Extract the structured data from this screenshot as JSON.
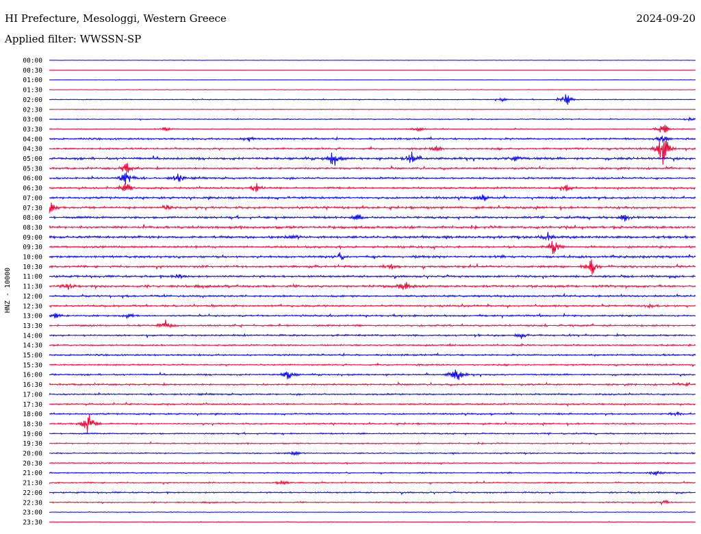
{
  "header": {
    "station": "HI Prefecture, Mesologgi, Western Greece",
    "date": "2024-09-20",
    "filter": "Applied filter: WWSSN-SP"
  },
  "chart_data": {
    "type": "line",
    "title": "HI Prefecture, Mesologgi, Western Greece",
    "date": "2024-09-20",
    "filter": "WWSSN-SP",
    "ylabel": "HNZ - 10000",
    "xlabel": "",
    "row_colors": [
      "#0000ee",
      "#ee0033"
    ],
    "grid": false,
    "legend": "none",
    "trace_minutes_per_row": 30,
    "rows": [
      {
        "label": "00:00",
        "bursts": [],
        "noise": 0.2
      },
      {
        "label": "00:30",
        "bursts": [],
        "noise": 0.2
      },
      {
        "label": "01:00",
        "bursts": [],
        "noise": 0.25
      },
      {
        "label": "01:30",
        "bursts": [],
        "noise": 0.3
      },
      {
        "label": "02:00",
        "bursts": [
          [
            0.7,
            3
          ],
          [
            0.8,
            11
          ]
        ],
        "noise": 0.5
      },
      {
        "label": "02:30",
        "bursts": [],
        "noise": 0.4
      },
      {
        "label": "03:00",
        "bursts": [
          [
            0.99,
            3
          ]
        ],
        "noise": 0.6
      },
      {
        "label": "03:30",
        "bursts": [
          [
            0.18,
            4
          ],
          [
            0.57,
            4
          ],
          [
            0.95,
            10
          ]
        ],
        "noise": 0.6
      },
      {
        "label": "04:00",
        "bursts": [
          [
            0.31,
            4
          ],
          [
            0.95,
            5
          ]
        ],
        "noise": 1.2
      },
      {
        "label": "04:30",
        "bursts": [
          [
            0.6,
            4
          ],
          [
            0.95,
            30
          ]
        ],
        "noise": 1.2
      },
      {
        "label": "05:00",
        "bursts": [
          [
            0.44,
            14
          ],
          [
            0.56,
            12
          ],
          [
            0.72,
            5
          ]
        ],
        "noise": 1.5
      },
      {
        "label": "05:30",
        "bursts": [
          [
            0.12,
            10
          ]
        ],
        "noise": 1.2
      },
      {
        "label": "06:00",
        "bursts": [
          [
            0.12,
            16
          ],
          [
            0.2,
            8
          ]
        ],
        "noise": 1.2
      },
      {
        "label": "06:30",
        "bursts": [
          [
            0.12,
            9
          ],
          [
            0.32,
            8
          ],
          [
            0.8,
            5
          ]
        ],
        "noise": 1.2
      },
      {
        "label": "07:00",
        "bursts": [
          [
            0.67,
            5
          ]
        ],
        "noise": 1.4
      },
      {
        "label": "07:30",
        "bursts": [
          [
            0.0,
            12
          ],
          [
            0.18,
            6
          ]
        ],
        "noise": 1.4
      },
      {
        "label": "08:00",
        "bursts": [
          [
            0.48,
            5
          ],
          [
            0.89,
            6
          ]
        ],
        "noise": 1.4
      },
      {
        "label": "08:30",
        "bursts": [],
        "noise": 1.6
      },
      {
        "label": "09:00",
        "bursts": [
          [
            0.38,
            4
          ],
          [
            0.77,
            8
          ]
        ],
        "noise": 1.6
      },
      {
        "label": "09:30",
        "bursts": [
          [
            0.78,
            14
          ]
        ],
        "noise": 1.3
      },
      {
        "label": "10:00",
        "bursts": [
          [
            0.45,
            5
          ]
        ],
        "noise": 1.5
      },
      {
        "label": "10:30",
        "bursts": [
          [
            0.84,
            14
          ],
          [
            0.53,
            4
          ]
        ],
        "noise": 1.3
      },
      {
        "label": "11:00",
        "bursts": [
          [
            0.2,
            4
          ]
        ],
        "noise": 1.3
      },
      {
        "label": "11:30",
        "bursts": [
          [
            0.03,
            6
          ],
          [
            0.55,
            8
          ]
        ],
        "noise": 1.5
      },
      {
        "label": "12:00",
        "bursts": [],
        "noise": 1.2
      },
      {
        "label": "12:30",
        "bursts": [
          [
            0.93,
            4
          ]
        ],
        "noise": 1.2
      },
      {
        "label": "13:00",
        "bursts": [
          [
            0.01,
            4
          ],
          [
            0.12,
            4
          ]
        ],
        "noise": 1.1
      },
      {
        "label": "13:30",
        "bursts": [
          [
            0.18,
            9
          ]
        ],
        "noise": 1.1
      },
      {
        "label": "14:00",
        "bursts": [
          [
            0.73,
            5
          ]
        ],
        "noise": 1.1
      },
      {
        "label": "14:30",
        "bursts": [],
        "noise": 1.0
      },
      {
        "label": "15:00",
        "bursts": [],
        "noise": 1.1
      },
      {
        "label": "15:30",
        "bursts": [],
        "noise": 1.0
      },
      {
        "label": "16:00",
        "bursts": [
          [
            0.37,
            8
          ],
          [
            0.63,
            16
          ]
        ],
        "noise": 1.0
      },
      {
        "label": "16:30",
        "bursts": [
          [
            0.99,
            4
          ]
        ],
        "noise": 1.1
      },
      {
        "label": "17:00",
        "bursts": [],
        "noise": 1.0
      },
      {
        "label": "17:30",
        "bursts": [],
        "noise": 1.0
      },
      {
        "label": "18:00",
        "bursts": [
          [
            0.97,
            4
          ]
        ],
        "noise": 1.0
      },
      {
        "label": "18:30",
        "bursts": [
          [
            0.06,
            22
          ]
        ],
        "noise": 1.0
      },
      {
        "label": "19:00",
        "bursts": [],
        "noise": 0.9
      },
      {
        "label": "19:30",
        "bursts": [],
        "noise": 0.8
      },
      {
        "label": "20:00",
        "bursts": [
          [
            0.38,
            4
          ]
        ],
        "noise": 0.8
      },
      {
        "label": "20:30",
        "bursts": [],
        "noise": 0.8
      },
      {
        "label": "21:00",
        "bursts": [
          [
            0.94,
            4
          ]
        ],
        "noise": 0.8
      },
      {
        "label": "21:30",
        "bursts": [
          [
            0.36,
            4
          ]
        ],
        "noise": 0.8
      },
      {
        "label": "22:00",
        "bursts": [],
        "noise": 0.9
      },
      {
        "label": "22:30",
        "bursts": [
          [
            0.95,
            4
          ]
        ],
        "noise": 0.8
      },
      {
        "label": "23:00",
        "bursts": [],
        "noise": 0.4
      },
      {
        "label": "23:30",
        "bursts": [],
        "noise": 0.4
      }
    ]
  }
}
